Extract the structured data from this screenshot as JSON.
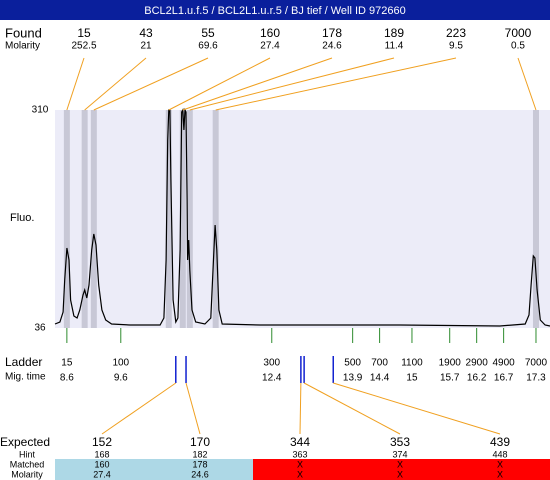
{
  "header": {
    "title": "BCL2L1.u.f.5 / BCL2L1.u.r.5 / BJ tief / Well ID 972660"
  },
  "found": {
    "label": "Found",
    "sublabel": "Molarity",
    "sizes": [
      15,
      43,
      55,
      160,
      178,
      189,
      223,
      7000
    ],
    "molarity": [
      252.5,
      21,
      69.6,
      27.4,
      24.6,
      11.4,
      9.5,
      0.5
    ],
    "times": [
      8.6,
      8.93,
      9.1,
      10.49,
      10.75,
      10.88,
      11.36,
      17.3
    ]
  },
  "chart_data": {
    "type": "line",
    "y_label": "Fluo.",
    "color": "#000000",
    "ylim": [
      36,
      310
    ],
    "yticks": [
      36,
      310
    ],
    "xlim": [
      8.38,
      17.56
    ],
    "x": [
      8.38,
      8.47,
      8.53,
      8.56,
      8.6,
      8.64,
      8.67,
      8.73,
      8.79,
      8.84,
      8.9,
      8.93,
      8.97,
      9.01,
      9.06,
      9.1,
      9.14,
      9.19,
      9.25,
      9.32,
      9.43,
      9.77,
      10.33,
      10.4,
      10.44,
      10.47,
      10.49,
      10.51,
      10.53,
      10.57,
      10.62,
      10.66,
      10.7,
      10.73,
      10.75,
      10.77,
      10.79,
      10.81,
      10.83,
      10.84,
      10.86,
      10.88,
      10.92,
      10.99,
      11.16,
      11.27,
      11.31,
      11.35,
      11.38,
      11.42,
      11.48,
      12.18,
      12.92,
      14.78,
      16.63,
      17.1,
      17.17,
      17.21,
      17.25,
      17.28,
      17.32,
      17.38,
      17.47,
      17.56
    ],
    "values": [
      41,
      43.5,
      56.1,
      96.3,
      136.6,
      121.5,
      71.2,
      51.1,
      48.6,
      58.6,
      77.5,
      83.8,
      73.7,
      90,
      134,
      154.1,
      140.3,
      90,
      58.6,
      46.1,
      41,
      39.8,
      39.8,
      48.6,
      121.5,
      272.3,
      310,
      310,
      222,
      71.2,
      43.5,
      48.6,
      134,
      307.5,
      310,
      284.9,
      310,
      307.5,
      196.9,
      121.5,
      146.6,
      108.9,
      58.6,
      43.5,
      41,
      48.6,
      108.9,
      165.5,
      134,
      58.6,
      41,
      39.8,
      39.8,
      39.8,
      38.5,
      41,
      52.3,
      90,
      126.5,
      124,
      83.8,
      46.1,
      39.8,
      38.5
    ]
  },
  "ladder": {
    "label": "Ladder",
    "sublabel": "Mig. time",
    "sizes": [
      15,
      100,
      300,
      500,
      700,
      1100,
      1900,
      2900,
      4900,
      7000
    ],
    "times": [
      8.6,
      9.6,
      12.4,
      13.9,
      14.4,
      15,
      15.7,
      16.2,
      16.7,
      17.3
    ]
  },
  "expected": {
    "label": "Expected",
    "hint_label": "Hint",
    "matched_label": "Matched",
    "molarity_label": "Molarity",
    "sizes": [
      152,
      170,
      344,
      353,
      439
    ],
    "times": [
      10.62,
      10.81,
      12.94,
      13.0,
      13.54
    ],
    "hint": [
      168,
      182,
      363,
      374,
      448
    ],
    "matched": [
      160,
      178,
      "X",
      "X",
      "X"
    ],
    "molarity": [
      27.4,
      24.6,
      "X",
      "X",
      "X"
    ],
    "colors": [
      "#add8e6",
      "#add8e6",
      "#ff0000",
      "#ff0000",
      "#ff0000"
    ]
  }
}
